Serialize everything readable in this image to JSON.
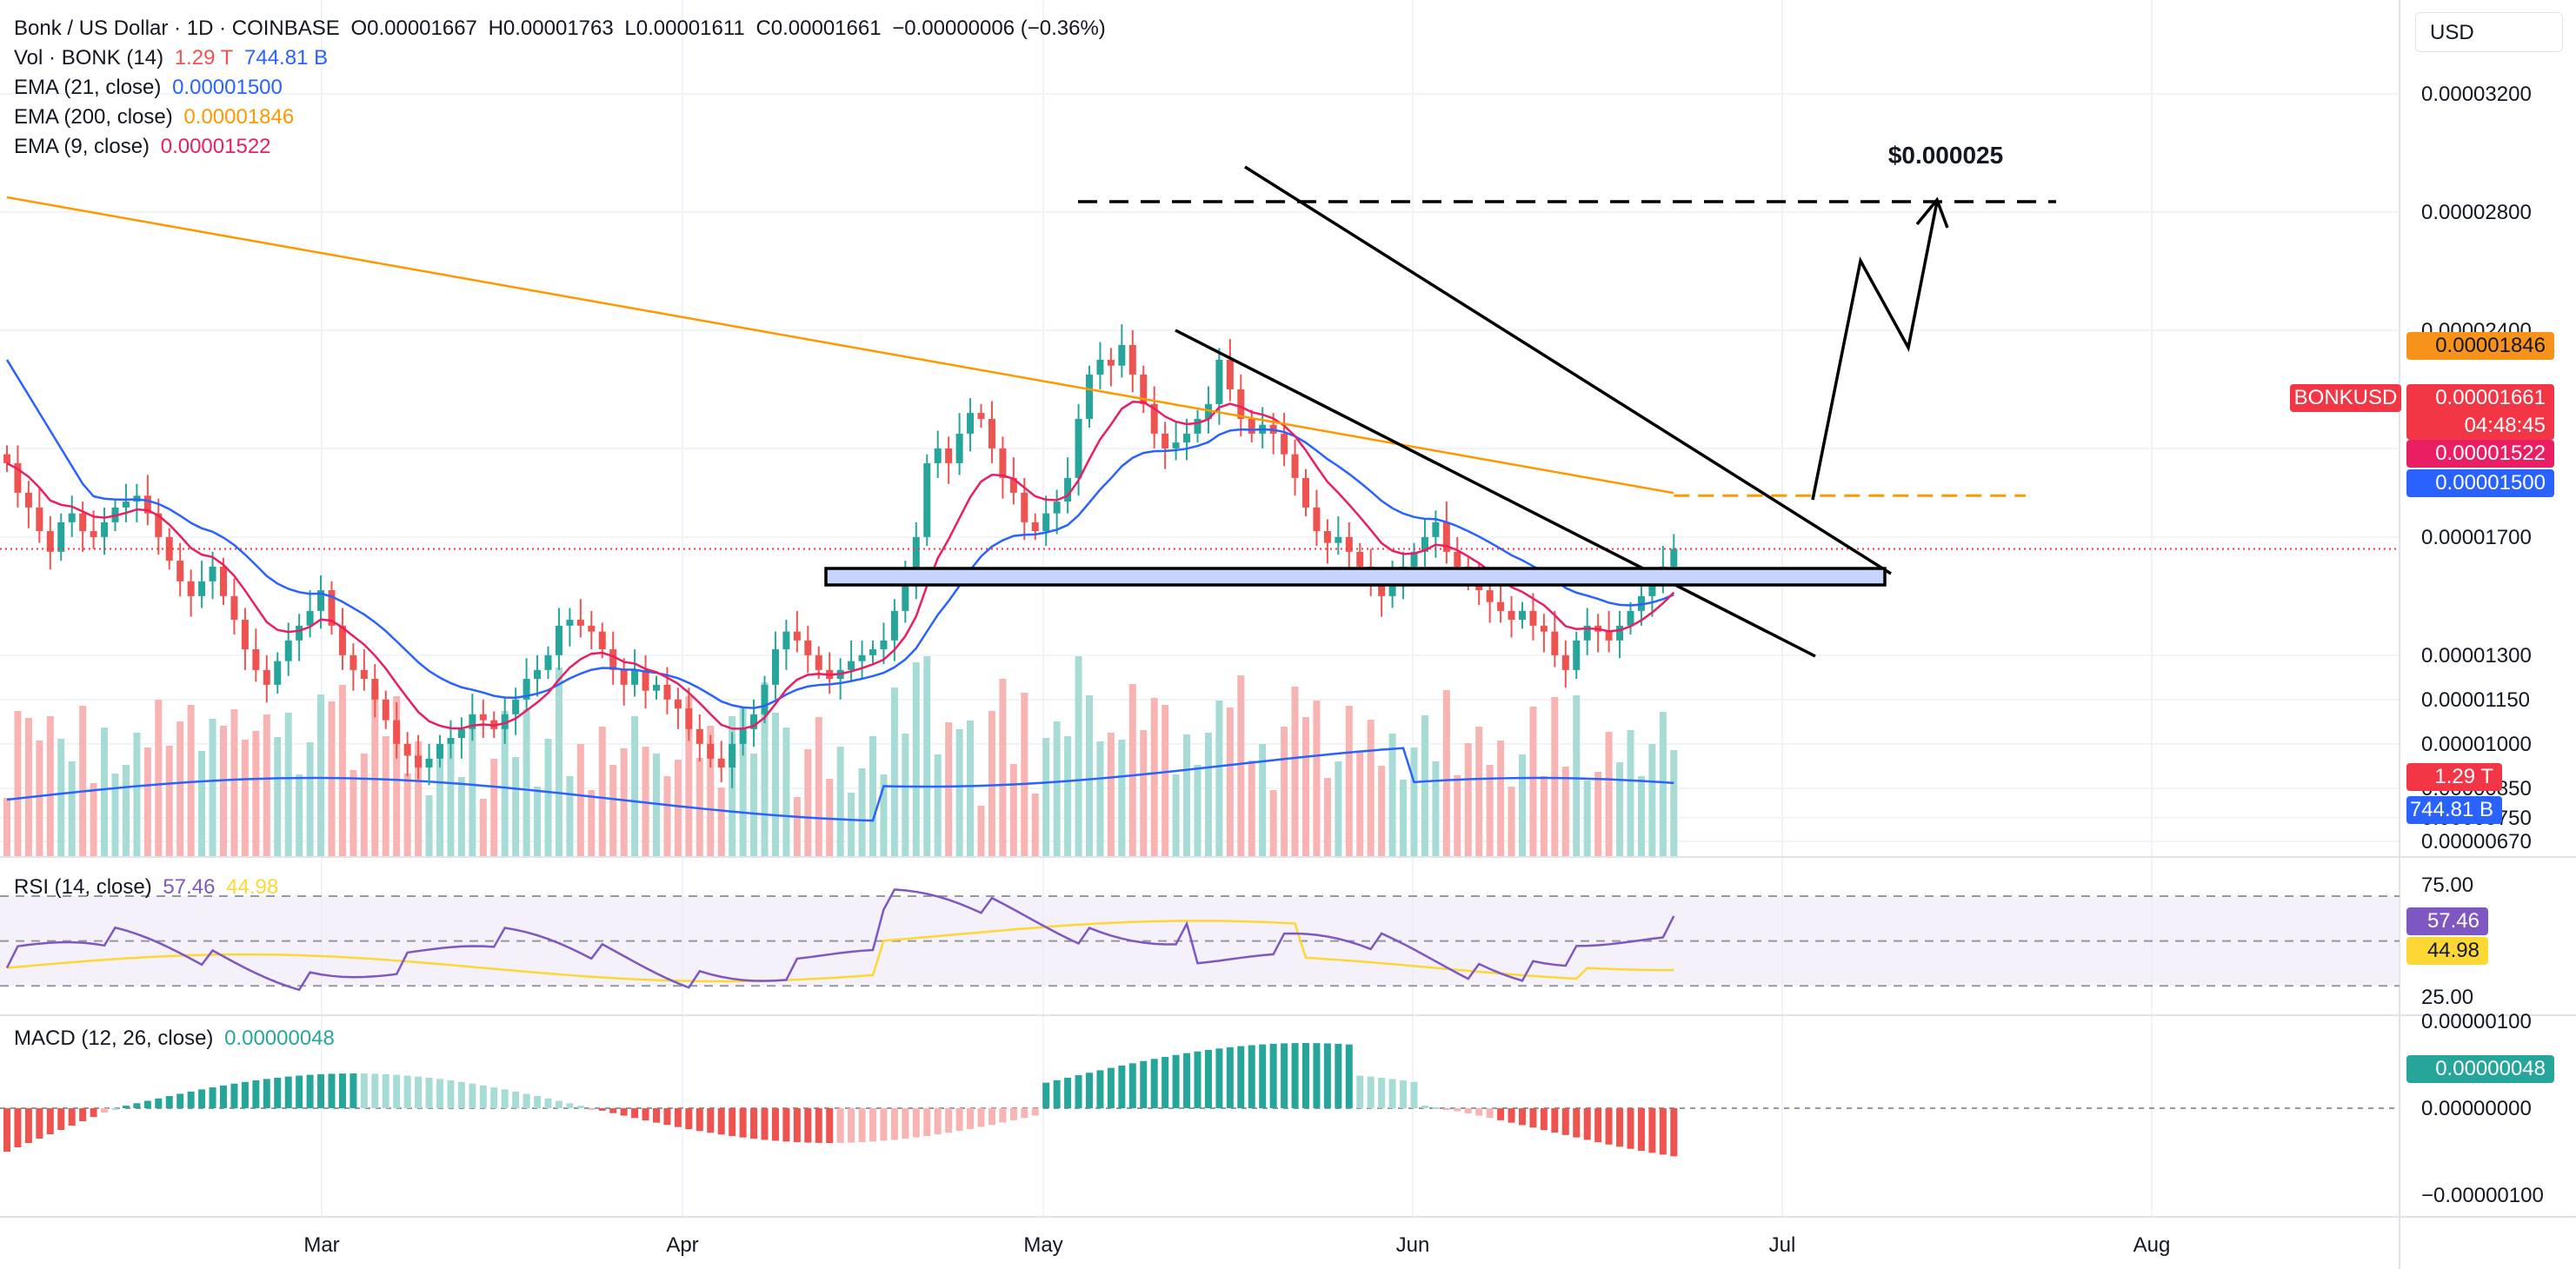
{
  "header": {
    "symbol": "Bonk / US Dollar · 1D · COINBASE",
    "open": "O0.00001667",
    "high": "H0.00001763",
    "low": "L0.00001611",
    "close": "C0.00001661",
    "change": "−0.00000006 (−0.36%)"
  },
  "indicators": {
    "vol": {
      "label": "Vol · BONK (14)",
      "v1": "1.29 T",
      "v2": "744.81 B"
    },
    "ema21": {
      "label": "EMA (21, close)",
      "value": "0.00001500"
    },
    "ema200": {
      "label": "EMA (200, close)",
      "value": "0.00001846"
    },
    "ema9": {
      "label": "EMA (9, close)",
      "value": "0.00001522"
    },
    "rsi": {
      "label": "RSI (14, close)",
      "v1": "57.46",
      "v2": "44.98"
    },
    "macd": {
      "label": "MACD (12, 26, close)",
      "value": "0.00000048"
    }
  },
  "currency_button": "USD",
  "price_tags": {
    "ema200": "0.00001846",
    "symbol_label": "BONKUSD",
    "last_price": "0.00001661",
    "countdown": "04:48:45",
    "ema9": "0.00001522",
    "ema21": "0.00001500",
    "vol": "1.29 T",
    "vol_ma": "744.81 B",
    "rsi": "57.46",
    "rsi_ma": "44.98",
    "macd": "0.00000048"
  },
  "annotation": "$0.000025",
  "colors": {
    "up": "#26a69a",
    "down": "#ef5350",
    "up_light": "#a7dbd5",
    "down_light": "#f7b4b2",
    "ema21": "#2962ff",
    "ema200": "#ff9800",
    "ema9": "#e91e63",
    "rsi": "#7e57c2",
    "rsi_ma": "#fdd835"
  },
  "chart_data": [
    {
      "type": "candlestick",
      "title": "Bonk / US Dollar · 1D · COINBASE",
      "x_tick_labels": [
        "Mar",
        "Apr",
        "May",
        "Jun",
        "Jul",
        "Aug"
      ],
      "y_tick_labels": [
        "0.00003200",
        "0.00002800",
        "0.00002400",
        "0.00002000",
        "0.00001700",
        "0.00001300",
        "0.00001150",
        "0.00001000",
        "0.00000850",
        "0.00000750",
        "0.00000670"
      ],
      "close_series": [
        1.95,
        1.85,
        1.8,
        1.72,
        1.65,
        1.75,
        1.78,
        1.72,
        1.7,
        1.75,
        1.8,
        1.82,
        1.84,
        1.78,
        1.7,
        1.62,
        1.55,
        1.5,
        1.55,
        1.6,
        1.5,
        1.42,
        1.32,
        1.25,
        1.2,
        1.28,
        1.35,
        1.4,
        1.45,
        1.52,
        1.4,
        1.3,
        1.25,
        1.22,
        1.15,
        1.08,
        1.0,
        0.96,
        0.92,
        0.95,
        1.0,
        1.02,
        1.05,
        1.1,
        1.08,
        1.05,
        1.1,
        1.15,
        1.22,
        1.25,
        1.3,
        1.4,
        1.42,
        1.4,
        1.38,
        1.32,
        1.25,
        1.2,
        1.25,
        1.18,
        1.2,
        1.15,
        1.12,
        1.05,
        1.0,
        0.95,
        0.92,
        1.0,
        1.05,
        1.1,
        1.2,
        1.32,
        1.38,
        1.35,
        1.3,
        1.25,
        1.22,
        1.25,
        1.28,
        1.3,
        1.32,
        1.35,
        1.45,
        1.55,
        1.7,
        1.95,
        2.0,
        1.95,
        2.05,
        2.12,
        2.1,
        2.0,
        1.9,
        1.85,
        1.75,
        1.72,
        1.78,
        1.82,
        1.9,
        2.1,
        2.25,
        2.3,
        2.28,
        2.35,
        2.25,
        2.15,
        2.05,
        2.0,
        2.02,
        2.05,
        2.1,
        2.15,
        2.3,
        2.2,
        2.1,
        2.05,
        2.08,
        2.05,
        1.98,
        1.9,
        1.8,
        1.72,
        1.68,
        1.7,
        1.65,
        1.6,
        1.55,
        1.5,
        1.55,
        1.6,
        1.65,
        1.7,
        1.75,
        1.65,
        1.6,
        1.55,
        1.52,
        1.48,
        1.45,
        1.42,
        1.45,
        1.4,
        1.38,
        1.3,
        1.25,
        1.35,
        1.4,
        1.38,
        1.35,
        1.4,
        1.45,
        1.5,
        1.55,
        1.6,
        1.66
      ]
    },
    {
      "type": "line",
      "title": "RSI (14, close)",
      "y_tick_labels": [
        "75.00",
        "25.00"
      ],
      "series": [
        {
          "name": "RSI",
          "last": 57.46
        },
        {
          "name": "RSI MA",
          "last": 44.98
        }
      ]
    },
    {
      "type": "bar",
      "title": "MACD (12, 26, close)",
      "y_tick_labels": [
        "0.00000100",
        "0.00000000",
        "−0.00000100"
      ],
      "last_value": 4.8e-07
    }
  ]
}
